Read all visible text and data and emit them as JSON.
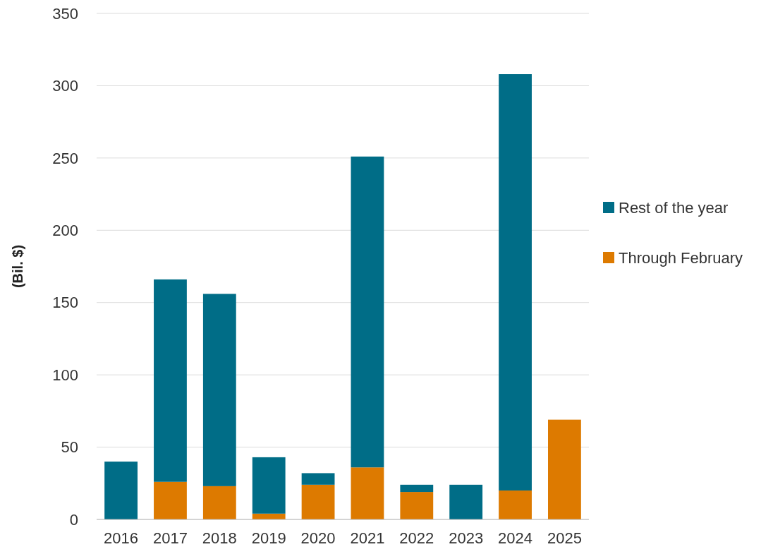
{
  "chart_data": {
    "type": "bar",
    "stacked": true,
    "ylabel": "(Bil. $)",
    "categories": [
      "2016",
      "2017",
      "2018",
      "2019",
      "2020",
      "2021",
      "2022",
      "2023",
      "2024",
      "2025"
    ],
    "series": [
      {
        "name": "Through February",
        "color": "#dd7a00",
        "values": [
          0,
          26,
          23,
          4,
          24,
          36,
          19,
          0,
          20,
          69
        ]
      },
      {
        "name": "Rest of the year",
        "color": "#006d87",
        "values": [
          40,
          140,
          133,
          39,
          8,
          215,
          5,
          24,
          288,
          0
        ]
      }
    ],
    "ylim": [
      0,
      350
    ],
    "yticks": [
      0,
      50,
      100,
      150,
      200,
      250,
      300,
      350
    ],
    "grid": "y",
    "legend": "right"
  }
}
